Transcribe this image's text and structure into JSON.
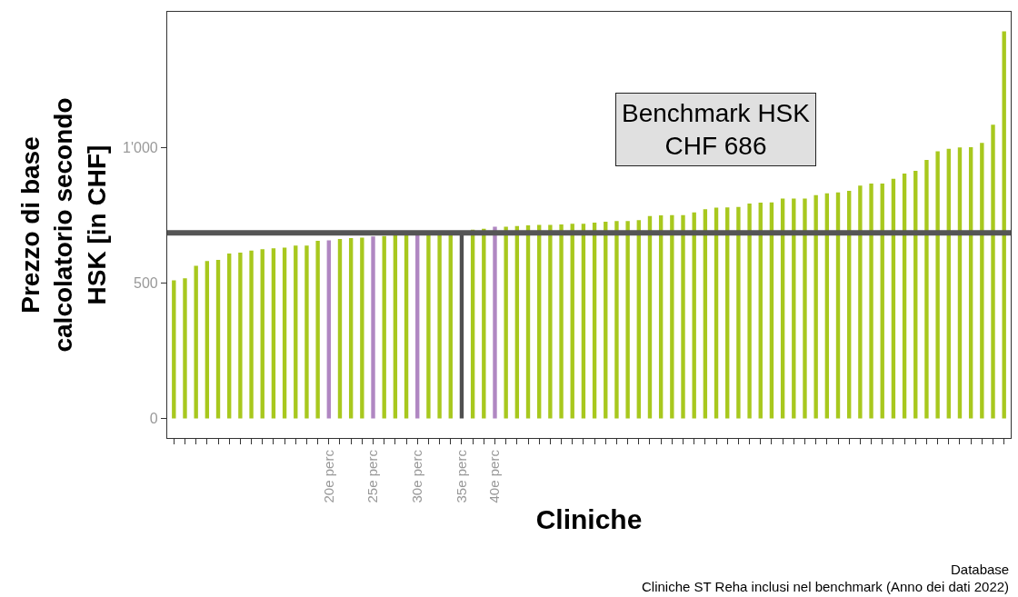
{
  "chart_data": {
    "type": "bar",
    "xlabel": "Cliniche",
    "ylabel": "Prezzo di base\ncalcolatorio secondo\nHSK [in CHF]",
    "categories": [
      null,
      null,
      null,
      null,
      null,
      null,
      null,
      null,
      null,
      null,
      null,
      null,
      null,
      null,
      "20e perc",
      null,
      null,
      null,
      "25e perc",
      null,
      null,
      null,
      "30e perc",
      null,
      null,
      null,
      "35e perc",
      null,
      null,
      "40e perc",
      null,
      null,
      null,
      null,
      null,
      null,
      null,
      null,
      null,
      null,
      null,
      null,
      null,
      null,
      null,
      null,
      null,
      null,
      null,
      null,
      null,
      null,
      null,
      null,
      null,
      null,
      null,
      null,
      null,
      null,
      null,
      null,
      null,
      null,
      null,
      null,
      null,
      null,
      null,
      null,
      null,
      null,
      null,
      null,
      null,
      null
    ],
    "values": [
      510,
      518,
      564,
      582,
      586,
      609,
      613,
      620,
      625,
      629,
      631,
      639,
      639,
      656,
      658,
      663,
      666,
      668,
      672,
      674,
      676,
      678,
      680,
      682,
      683,
      685,
      686,
      697,
      701,
      708,
      708,
      711,
      713,
      715,
      715,
      717,
      719,
      719,
      723,
      727,
      729,
      729,
      733,
      748,
      750,
      751,
      751,
      761,
      773,
      779,
      780,
      781,
      794,
      797,
      798,
      812,
      812,
      812,
      825,
      832,
      835,
      841,
      860,
      868,
      868,
      885,
      905,
      915,
      955,
      987,
      996,
      1001,
      1002,
      1018,
      1085,
      1430
    ],
    "colors": [
      "#a8c81e",
      "#a8c81e",
      "#a8c81e",
      "#a8c81e",
      "#a8c81e",
      "#a8c81e",
      "#a8c81e",
      "#a8c81e",
      "#a8c81e",
      "#a8c81e",
      "#a8c81e",
      "#a8c81e",
      "#a8c81e",
      "#a8c81e",
      "#b087c2",
      "#a8c81e",
      "#a8c81e",
      "#a8c81e",
      "#b087c2",
      "#a8c81e",
      "#a8c81e",
      "#a8c81e",
      "#b087c2",
      "#a8c81e",
      "#a8c81e",
      "#a8c81e",
      "#505050",
      "#a8c81e",
      "#a8c81e",
      "#b087c2",
      "#a8c81e",
      "#a8c81e",
      "#a8c81e",
      "#a8c81e",
      "#a8c81e",
      "#a8c81e",
      "#a8c81e",
      "#a8c81e",
      "#a8c81e",
      "#a8c81e",
      "#a8c81e",
      "#a8c81e",
      "#a8c81e",
      "#a8c81e",
      "#a8c81e",
      "#a8c81e",
      "#a8c81e",
      "#a8c81e",
      "#a8c81e",
      "#a8c81e",
      "#a8c81e",
      "#a8c81e",
      "#a8c81e",
      "#a8c81e",
      "#a8c81e",
      "#a8c81e",
      "#a8c81e",
      "#a8c81e",
      "#a8c81e",
      "#a8c81e",
      "#a8c81e",
      "#a8c81e",
      "#a8c81e",
      "#a8c81e",
      "#a8c81e",
      "#a8c81e",
      "#a8c81e",
      "#a8c81e",
      "#a8c81e",
      "#a8c81e",
      "#a8c81e",
      "#a8c81e",
      "#a8c81e",
      "#a8c81e",
      "#a8c81e",
      "#a8c81e"
    ],
    "ylim": [
      -72,
      1502
    ],
    "yticks": [
      0,
      500,
      {
        "value": 1000,
        "label": "1'000"
      }
    ],
    "ref_lines": [
      {
        "axis": "y",
        "value": 686,
        "label": "Benchmark HSK\nCHF 686",
        "color": "#555555"
      }
    ],
    "annotations": [
      "Database",
      "Cliniche ST Reha inclusi nel benchmark (Anno dei dati 2022)"
    ],
    "legend": false
  }
}
